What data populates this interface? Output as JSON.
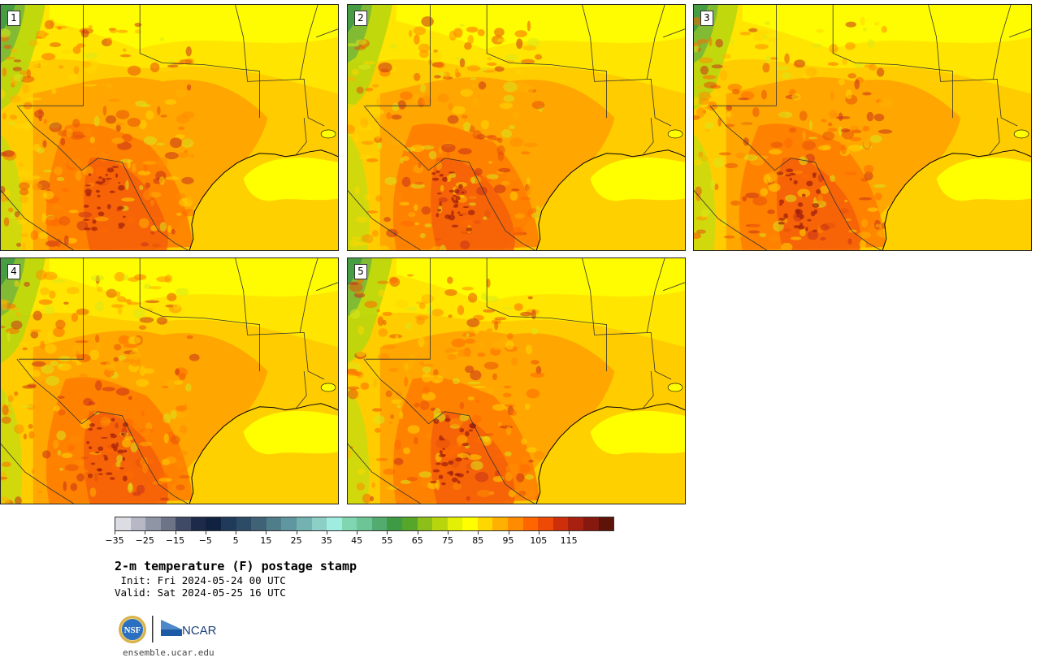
{
  "panels": [
    {
      "label": "1"
    },
    {
      "label": "2"
    },
    {
      "label": "3"
    },
    {
      "label": "4"
    },
    {
      "label": "5"
    }
  ],
  "colorbar": {
    "colors": [
      "#dcdde4",
      "#b6b8c6",
      "#9095a6",
      "#6d7488",
      "#3f4a66",
      "#1e2a4a",
      "#112240",
      "#1f3a5a",
      "#2c4b66",
      "#3f6277",
      "#4f7d88",
      "#6096a0",
      "#74b2b2",
      "#8ccfc6",
      "#a0ece0",
      "#7fd6b0",
      "#6cc596",
      "#54ab70",
      "#3f9a44",
      "#56a62a",
      "#8cbf1a",
      "#b9d60d",
      "#e3ef05",
      "#ffff00",
      "#ffd700",
      "#ffb000",
      "#ff8c00",
      "#ff6600",
      "#ee4a06",
      "#cc2f0a",
      "#a82010",
      "#861810",
      "#5e1308"
    ],
    "tick_labels": [
      "−35",
      "−25",
      "−15",
      "−5",
      "5",
      "15",
      "25",
      "35",
      "45",
      "55",
      "65",
      "75",
      "85",
      "95",
      "105",
      "115"
    ]
  },
  "title": {
    "main": "2-m temperature (F) postage stamp",
    "init": " Init: Fri 2024-05-24 00 UTC",
    "valid": "Valid: Sat 2024-05-25 16 UTC"
  },
  "logos": {
    "nsf": "NSF",
    "ncar": "NCAR"
  },
  "footer": {
    "url": "ensemble.ucar.edu"
  }
}
